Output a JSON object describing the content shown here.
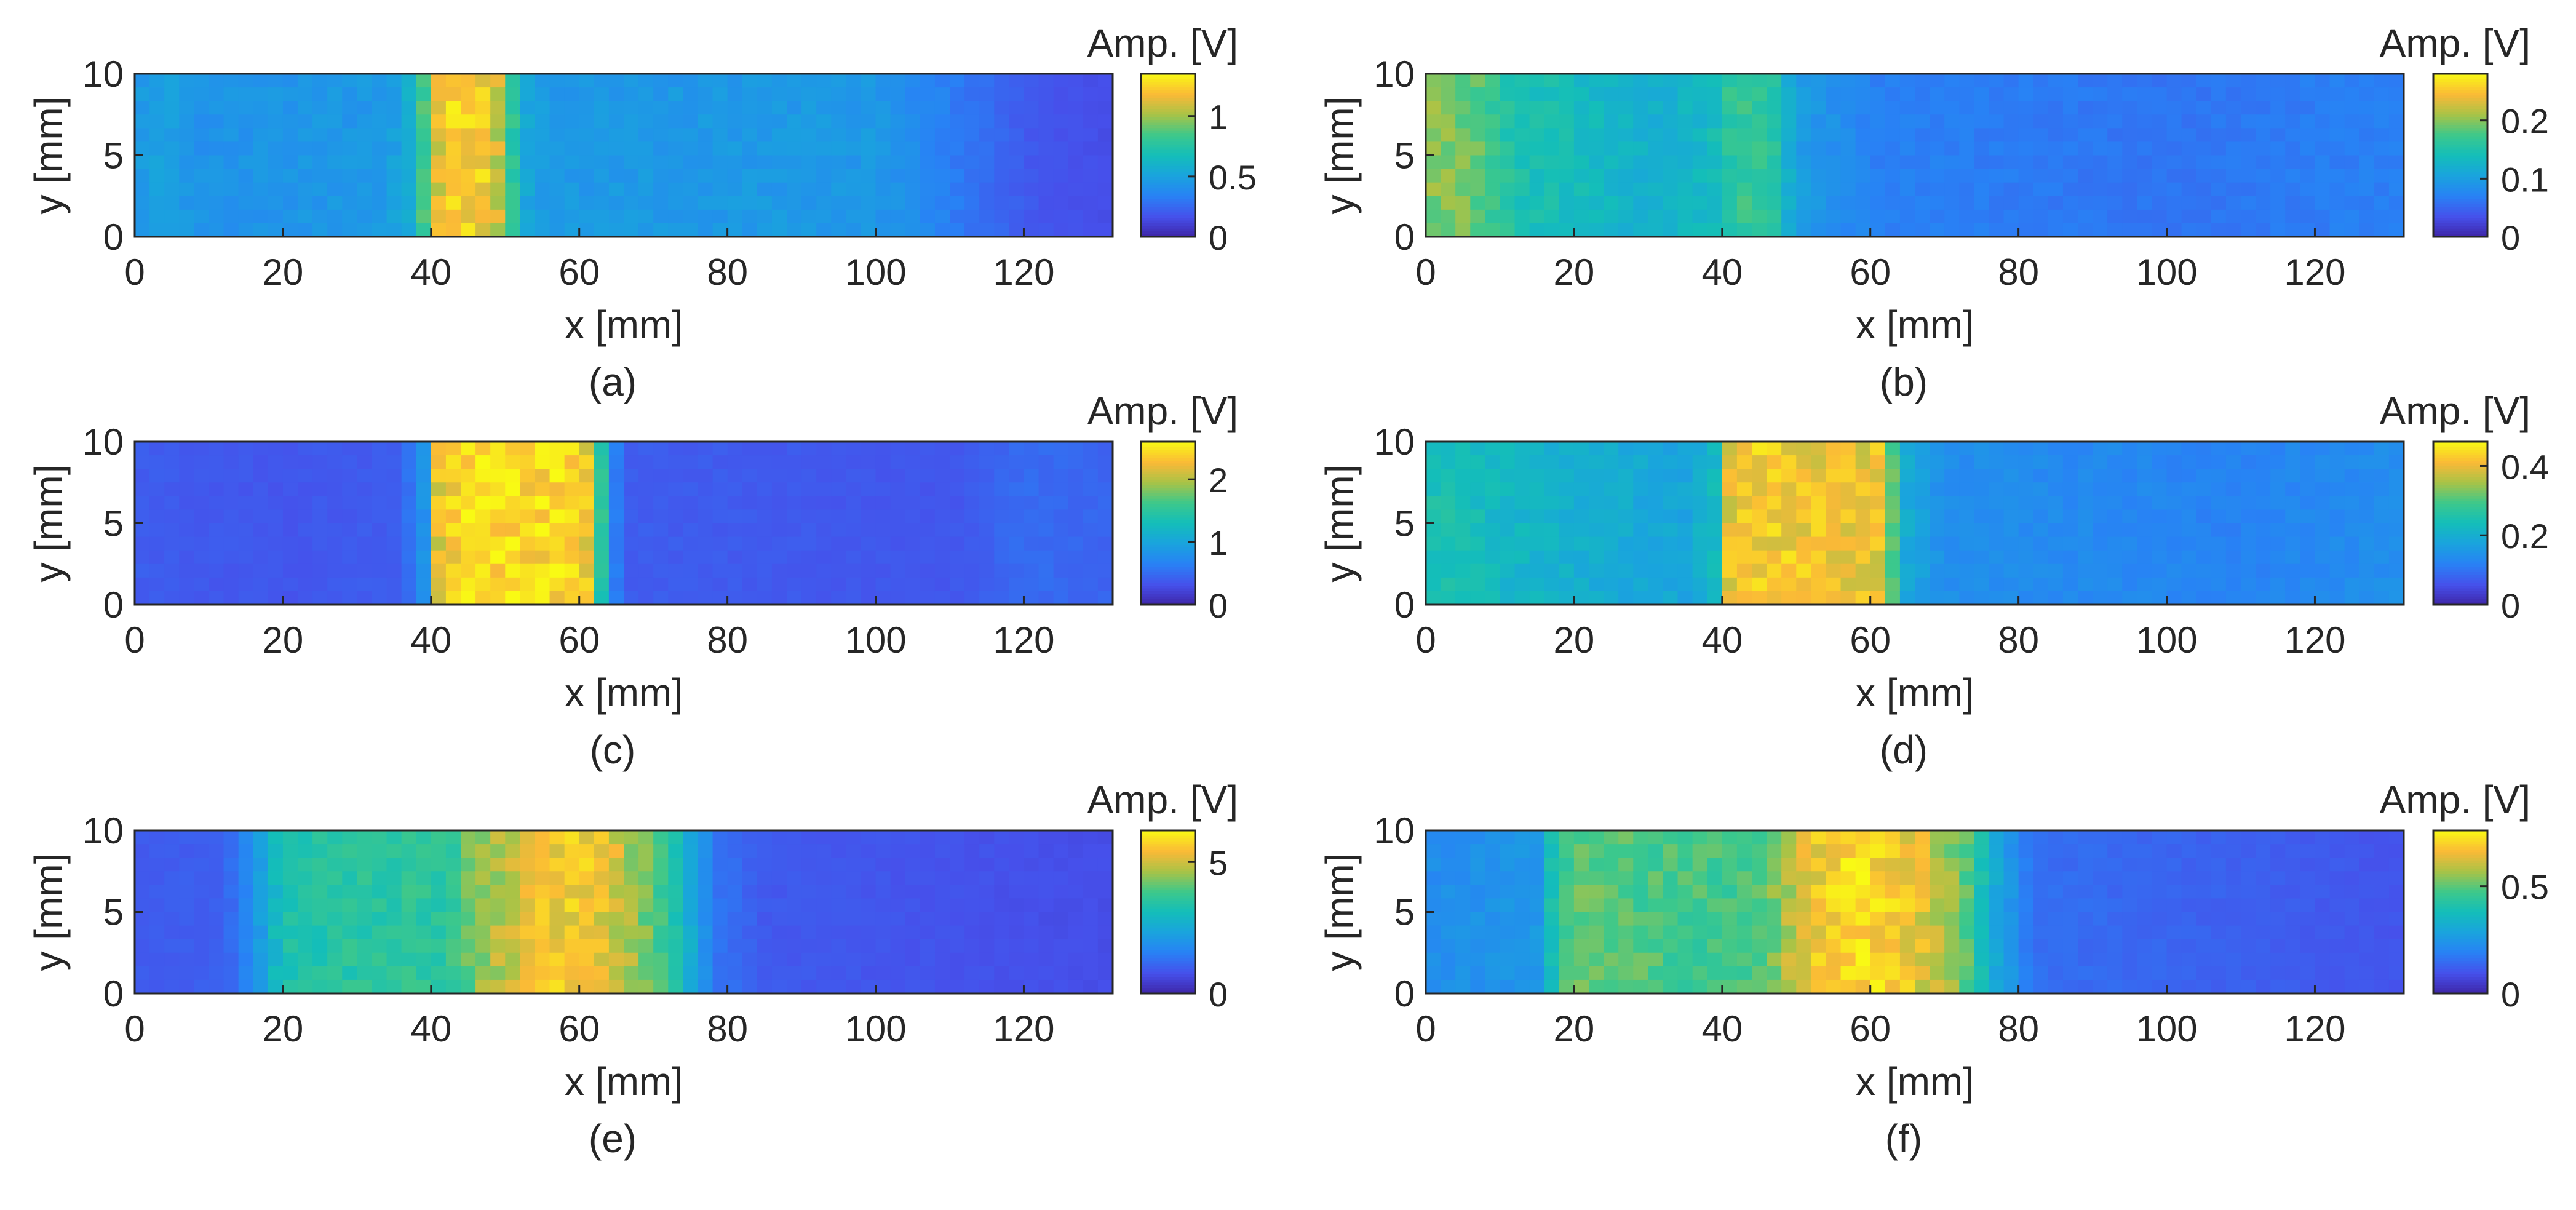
{
  "chart_data": [
    {
      "id": "a",
      "type": "heatmap",
      "caption": "(a)",
      "xlabel": "x [mm]",
      "ylabel": "y [mm]",
      "colorbar_label": "Amp. [V]",
      "xlim": [
        0,
        132
      ],
      "ylim": [
        0,
        10
      ],
      "clim": [
        0,
        1.35
      ],
      "xticks": [
        "0",
        "20",
        "40",
        "60",
        "80",
        "100",
        "120"
      ],
      "yticks": [
        "0",
        "5",
        "10"
      ],
      "cticks": [
        "0",
        "0.5",
        "1"
      ],
      "profile": [
        {
          "x": 0,
          "v": 0.45
        },
        {
          "x": 4,
          "v": 0.5
        },
        {
          "x": 8,
          "v": 0.42
        },
        {
          "x": 34,
          "v": 0.45
        },
        {
          "x": 38,
          "v": 0.6
        },
        {
          "x": 40,
          "v": 1.05
        },
        {
          "x": 43,
          "v": 1.25
        },
        {
          "x": 47,
          "v": 1.2
        },
        {
          "x": 50,
          "v": 1.0
        },
        {
          "x": 52,
          "v": 0.55
        },
        {
          "x": 56,
          "v": 0.45
        },
        {
          "x": 100,
          "v": 0.45
        },
        {
          "x": 108,
          "v": 0.35
        },
        {
          "x": 116,
          "v": 0.25
        },
        {
          "x": 122,
          "v": 0.18
        },
        {
          "x": 132,
          "v": 0.15
        }
      ]
    },
    {
      "id": "b",
      "type": "heatmap",
      "caption": "(b)",
      "xlabel": "x [mm]",
      "ylabel": "y [mm]",
      "colorbar_label": "Amp. [V]",
      "xlim": [
        0,
        132
      ],
      "ylim": [
        0,
        10
      ],
      "clim": [
        0,
        0.28
      ],
      "xticks": [
        "0",
        "20",
        "40",
        "60",
        "80",
        "100",
        "120"
      ],
      "yticks": [
        "0",
        "5",
        "10"
      ],
      "cticks": [
        "0",
        "0.1",
        "0.2"
      ],
      "profile": [
        {
          "x": 0,
          "v": 0.2
        },
        {
          "x": 6,
          "v": 0.19
        },
        {
          "x": 12,
          "v": 0.15
        },
        {
          "x": 30,
          "v": 0.12
        },
        {
          "x": 38,
          "v": 0.13
        },
        {
          "x": 42,
          "v": 0.17
        },
        {
          "x": 47,
          "v": 0.16
        },
        {
          "x": 50,
          "v": 0.1
        },
        {
          "x": 60,
          "v": 0.07
        },
        {
          "x": 100,
          "v": 0.06
        },
        {
          "x": 132,
          "v": 0.07
        }
      ]
    },
    {
      "id": "c",
      "type": "heatmap",
      "caption": "(c)",
      "xlabel": "x [mm]",
      "ylabel": "y [mm]",
      "colorbar_label": "Amp. [V]",
      "xlim": [
        0,
        132
      ],
      "ylim": [
        0,
        10
      ],
      "clim": [
        0,
        2.6
      ],
      "xticks": [
        "0",
        "20",
        "40",
        "60",
        "80",
        "100",
        "120"
      ],
      "yticks": [
        "0",
        "5",
        "10"
      ],
      "cticks": [
        "0",
        "1",
        "2"
      ],
      "profile": [
        {
          "x": 0,
          "v": 0.4
        },
        {
          "x": 20,
          "v": 0.35
        },
        {
          "x": 36,
          "v": 0.4
        },
        {
          "x": 39,
          "v": 0.8
        },
        {
          "x": 41,
          "v": 2.2
        },
        {
          "x": 45,
          "v": 2.45
        },
        {
          "x": 58,
          "v": 2.4
        },
        {
          "x": 62,
          "v": 2.2
        },
        {
          "x": 64,
          "v": 0.7
        },
        {
          "x": 67,
          "v": 0.4
        },
        {
          "x": 110,
          "v": 0.35
        },
        {
          "x": 120,
          "v": 0.5
        },
        {
          "x": 132,
          "v": 0.45
        }
      ]
    },
    {
      "id": "d",
      "type": "heatmap",
      "caption": "(d)",
      "xlabel": "x [mm]",
      "ylabel": "y [mm]",
      "colorbar_label": "Amp. [V]",
      "xlim": [
        0,
        132
      ],
      "ylim": [
        0,
        10
      ],
      "clim": [
        0,
        0.47
      ],
      "xticks": [
        "0",
        "20",
        "40",
        "60",
        "80",
        "100",
        "120"
      ],
      "yticks": [
        "0",
        "5",
        "10"
      ],
      "cticks": [
        "0",
        "0.2",
        "0.4"
      ],
      "profile": [
        {
          "x": 0,
          "v": 0.25
        },
        {
          "x": 10,
          "v": 0.22
        },
        {
          "x": 20,
          "v": 0.2
        },
        {
          "x": 35,
          "v": 0.18
        },
        {
          "x": 39,
          "v": 0.22
        },
        {
          "x": 41,
          "v": 0.4
        },
        {
          "x": 44,
          "v": 0.42
        },
        {
          "x": 62,
          "v": 0.4
        },
        {
          "x": 64,
          "v": 0.2
        },
        {
          "x": 70,
          "v": 0.14
        },
        {
          "x": 110,
          "v": 0.12
        },
        {
          "x": 132,
          "v": 0.14
        }
      ]
    },
    {
      "id": "e",
      "type": "heatmap",
      "caption": "(e)",
      "xlabel": "x [mm]",
      "ylabel": "y [mm]",
      "colorbar_label": "Amp. [V]",
      "xlim": [
        0,
        132
      ],
      "ylim": [
        0,
        10
      ],
      "clim": [
        0,
        6.2
      ],
      "xticks": [
        "0",
        "20",
        "40",
        "60",
        "80",
        "100",
        "120"
      ],
      "yticks": [
        "0",
        "5",
        "10"
      ],
      "cticks": [
        "0",
        "5"
      ],
      "profile": [
        {
          "x": 0,
          "v": 0.9
        },
        {
          "x": 12,
          "v": 1.0
        },
        {
          "x": 16,
          "v": 1.8
        },
        {
          "x": 20,
          "v": 3.3
        },
        {
          "x": 30,
          "v": 3.5
        },
        {
          "x": 42,
          "v": 3.6
        },
        {
          "x": 48,
          "v": 4.6
        },
        {
          "x": 55,
          "v": 5.5
        },
        {
          "x": 62,
          "v": 5.4
        },
        {
          "x": 68,
          "v": 4.5
        },
        {
          "x": 74,
          "v": 3.0
        },
        {
          "x": 78,
          "v": 1.4
        },
        {
          "x": 85,
          "v": 0.9
        },
        {
          "x": 132,
          "v": 0.7
        }
      ]
    },
    {
      "id": "f",
      "type": "heatmap",
      "caption": "(f)",
      "xlabel": "x [mm]",
      "ylabel": "y [mm]",
      "colorbar_label": "Amp. [V]",
      "xlim": [
        0,
        132
      ],
      "ylim": [
        0,
        10
      ],
      "clim": [
        0,
        0.76
      ],
      "xticks": [
        "0",
        "20",
        "40",
        "60",
        "80",
        "100",
        "120"
      ],
      "yticks": [
        "0",
        "5",
        "10"
      ],
      "cticks": [
        "0",
        "0.5"
      ],
      "profile": [
        {
          "x": 0,
          "v": 0.22
        },
        {
          "x": 15,
          "v": 0.25
        },
        {
          "x": 18,
          "v": 0.45
        },
        {
          "x": 21,
          "v": 0.5
        },
        {
          "x": 35,
          "v": 0.47
        },
        {
          "x": 45,
          "v": 0.48
        },
        {
          "x": 52,
          "v": 0.65
        },
        {
          "x": 58,
          "v": 0.72
        },
        {
          "x": 66,
          "v": 0.65
        },
        {
          "x": 73,
          "v": 0.5
        },
        {
          "x": 77,
          "v": 0.3
        },
        {
          "x": 82,
          "v": 0.15
        },
        {
          "x": 132,
          "v": 0.1
        }
      ]
    }
  ]
}
